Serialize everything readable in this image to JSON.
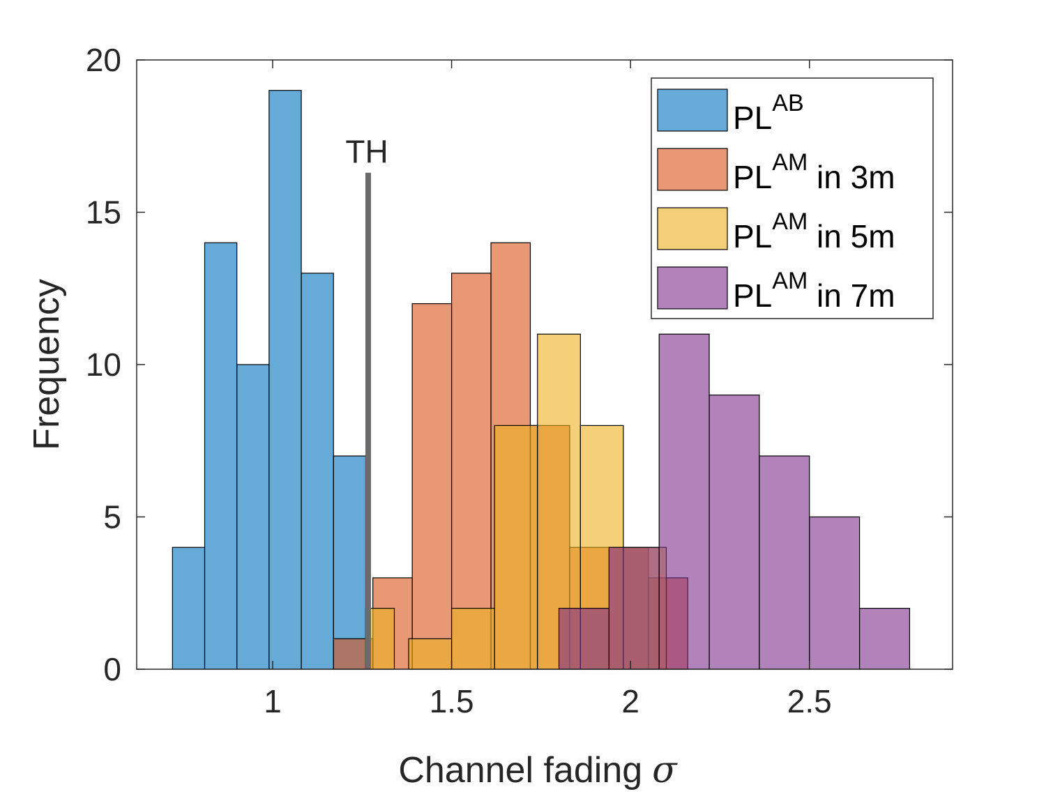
{
  "chart_data": {
    "type": "histogram",
    "xlabel": "Channel fading",
    "xlabel_symbol": "σ",
    "ylabel": "Frequency",
    "xlim": [
      0.62,
      2.9
    ],
    "ylim": [
      0,
      20
    ],
    "xticks": [
      1,
      1.5,
      2,
      2.5
    ],
    "xtick_labels": [
      "1",
      "1.5",
      "2",
      "2.5"
    ],
    "yticks": [
      0,
      5,
      10,
      15,
      20
    ],
    "ytick_labels": [
      "0",
      "5",
      "10",
      "15",
      "20"
    ],
    "grid": false,
    "legend_position": "top-right",
    "threshold": {
      "label": "TH",
      "x": 1.267,
      "height": 16.3,
      "color": "#6b6b6b"
    },
    "series": [
      {
        "name": "PL",
        "sup": "AB",
        "suffix": "",
        "color": "#0072BD",
        "alpha": 0.6,
        "bins": [
          {
            "x0": 0.72,
            "x1": 0.81,
            "count": 4
          },
          {
            "x0": 0.81,
            "x1": 0.9,
            "count": 14
          },
          {
            "x0": 0.9,
            "x1": 0.99,
            "count": 10
          },
          {
            "x0": 0.99,
            "x1": 1.08,
            "count": 19
          },
          {
            "x0": 1.08,
            "x1": 1.17,
            "count": 13
          },
          {
            "x0": 1.17,
            "x1": 1.26,
            "count": 7
          }
        ]
      },
      {
        "name": "PL",
        "sup": "AM",
        "suffix": " in 3m",
        "color": "#D95319",
        "alpha": 0.6,
        "bins": [
          {
            "x0": 1.17,
            "x1": 1.28,
            "count": 1
          },
          {
            "x0": 1.28,
            "x1": 1.39,
            "count": 3
          },
          {
            "x0": 1.39,
            "x1": 1.5,
            "count": 12
          },
          {
            "x0": 1.5,
            "x1": 1.61,
            "count": 13
          },
          {
            "x0": 1.61,
            "x1": 1.72,
            "count": 14
          },
          {
            "x0": 1.72,
            "x1": 1.83,
            "count": 8
          },
          {
            "x0": 1.83,
            "x1": 1.94,
            "count": 4
          },
          {
            "x0": 1.94,
            "x1": 2.05,
            "count": 4
          },
          {
            "x0": 2.05,
            "x1": 2.16,
            "count": 3
          }
        ]
      },
      {
        "name": "PL",
        "sup": "AM",
        "suffix": " in 5m",
        "color": "#EDB120",
        "alpha": 0.6,
        "bins": [
          {
            "x0": 1.26,
            "x1": 1.34,
            "count": 2
          },
          {
            "x0": 1.38,
            "x1": 1.5,
            "count": 1
          },
          {
            "x0": 1.5,
            "x1": 1.62,
            "count": 2
          },
          {
            "x0": 1.62,
            "x1": 1.74,
            "count": 8
          },
          {
            "x0": 1.74,
            "x1": 1.86,
            "count": 11
          },
          {
            "x0": 1.86,
            "x1": 1.98,
            "count": 8
          },
          {
            "x0": 1.98,
            "x1": 2.1,
            "count": 4
          }
        ]
      },
      {
        "name": "PL",
        "sup": "AM",
        "suffix": " in 7m",
        "color": "#7E2F8E",
        "alpha": 0.6,
        "bins": [
          {
            "x0": 1.8,
            "x1": 1.94,
            "count": 2
          },
          {
            "x0": 1.94,
            "x1": 2.08,
            "count": 4
          },
          {
            "x0": 2.08,
            "x1": 2.22,
            "count": 11
          },
          {
            "x0": 2.22,
            "x1": 2.36,
            "count": 9
          },
          {
            "x0": 2.36,
            "x1": 2.5,
            "count": 7
          },
          {
            "x0": 2.5,
            "x1": 2.64,
            "count": 5
          },
          {
            "x0": 2.64,
            "x1": 2.78,
            "count": 2
          }
        ]
      }
    ]
  }
}
